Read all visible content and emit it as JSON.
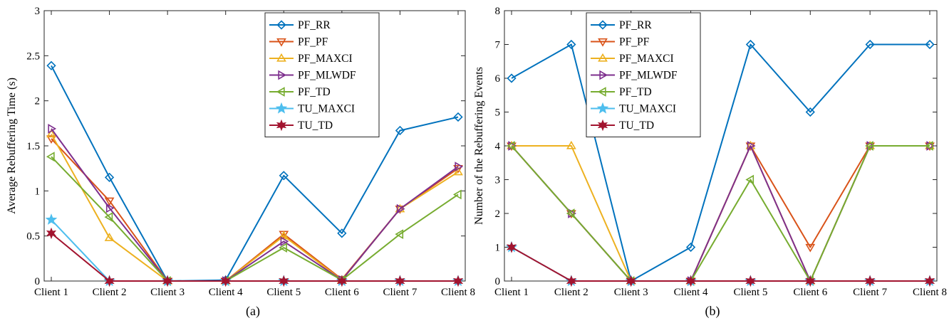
{
  "series_styles": [
    {
      "name": "PF_RR",
      "color": "#0072BD",
      "marker": "diamond"
    },
    {
      "name": "PF_PF",
      "color": "#D95319",
      "marker": "tri-down"
    },
    {
      "name": "PF_MAXCI",
      "color": "#EDB120",
      "marker": "tri-up"
    },
    {
      "name": "PF_MLWDF",
      "color": "#7E2F8E",
      "marker": "tri-right"
    },
    {
      "name": "PF_TD",
      "color": "#77AC30",
      "marker": "tri-left"
    },
    {
      "name": "TU_MAXCI",
      "color": "#4DBEEE",
      "marker": "star5"
    },
    {
      "name": "TU_TD",
      "color": "#A2142F",
      "marker": "star6"
    }
  ],
  "chart_data": [
    {
      "type": "line",
      "subtitle": "(a)",
      "xlabel": "",
      "ylabel": "Average Rebuffering Time (s)",
      "categories": [
        "Client 1",
        "Client 2",
        "Client 3",
        "Client 4",
        "Client 5",
        "Client 6",
        "Client 7",
        "Client 8"
      ],
      "ylim": [
        0,
        3
      ],
      "yticks": [
        "0",
        "0.5",
        "1",
        "1.5",
        "2",
        "2.5",
        "3"
      ],
      "legend": "top-right-inside",
      "grid": false,
      "series": [
        {
          "name": "PF_RR",
          "values": [
            2.39,
            1.15,
            0,
            0.01,
            1.17,
            0.53,
            1.67,
            1.82
          ]
        },
        {
          "name": "PF_PF",
          "values": [
            1.58,
            0.89,
            0,
            0,
            0.52,
            0.02,
            0.8,
            1.25
          ]
        },
        {
          "name": "PF_MAXCI",
          "values": [
            1.63,
            0.48,
            0,
            0,
            0.5,
            0.01,
            0.8,
            1.21
          ]
        },
        {
          "name": "PF_MLWDF",
          "values": [
            1.69,
            0.81,
            0,
            0,
            0.44,
            0.01,
            0.8,
            1.27
          ]
        },
        {
          "name": "PF_TD",
          "values": [
            1.38,
            0.71,
            0,
            0,
            0.37,
            0.01,
            0.52,
            0.96
          ]
        },
        {
          "name": "TU_MAXCI",
          "values": [
            0.68,
            0,
            0,
            0,
            0,
            0,
            0,
            0
          ]
        },
        {
          "name": "TU_TD",
          "values": [
            0.53,
            0,
            0,
            0,
            0,
            0,
            0,
            0
          ]
        }
      ]
    },
    {
      "type": "line",
      "subtitle": "(b)",
      "xlabel": "",
      "ylabel": "Number of the Rebuffering Events",
      "categories": [
        "Client 1",
        "Client 2",
        "Client 3",
        "Client 4",
        "Client 5",
        "Client 6",
        "Client 7",
        "Client 8"
      ],
      "ylim": [
        0,
        8
      ],
      "yticks": [
        "0",
        "1",
        "2",
        "3",
        "4",
        "5",
        "6",
        "7",
        "8"
      ],
      "legend": "top-center-inside",
      "grid": false,
      "series": [
        {
          "name": "PF_RR",
          "values": [
            6,
            7,
            0,
            1,
            7,
            5,
            7,
            7
          ]
        },
        {
          "name": "PF_PF",
          "values": [
            4,
            2,
            0,
            0,
            4,
            1,
            4,
            4
          ]
        },
        {
          "name": "PF_MAXCI",
          "values": [
            4,
            4,
            0,
            0,
            4,
            0,
            4,
            4
          ]
        },
        {
          "name": "PF_MLWDF",
          "values": [
            4,
            2,
            0,
            0,
            4,
            0,
            4,
            4
          ]
        },
        {
          "name": "PF_TD",
          "values": [
            4,
            2,
            0,
            0,
            3,
            0,
            4,
            4
          ]
        },
        {
          "name": "TU_MAXCI",
          "values": [
            1,
            0,
            0,
            0,
            0,
            0,
            0,
            0
          ]
        },
        {
          "name": "TU_TD",
          "values": [
            1,
            0,
            0,
            0,
            0,
            0,
            0,
            0
          ]
        }
      ]
    }
  ]
}
